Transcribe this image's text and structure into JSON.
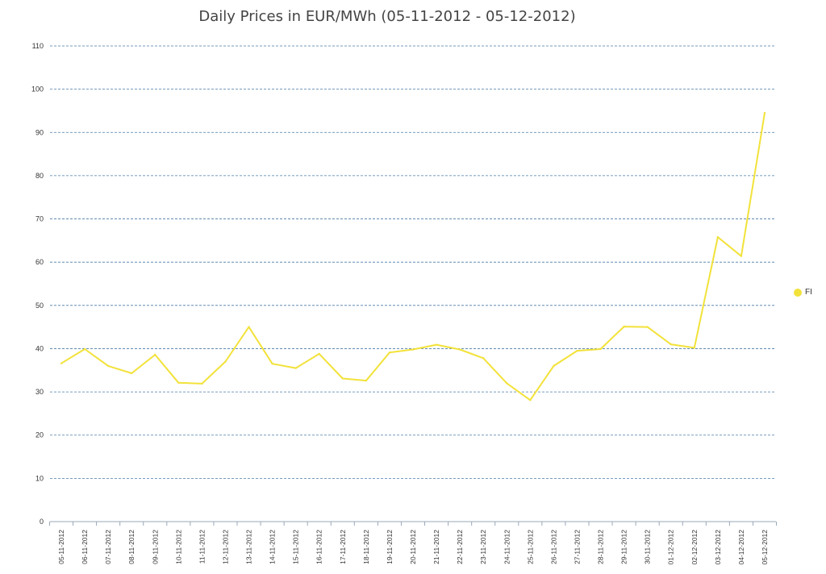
{
  "chart_data": {
    "type": "line",
    "title": "Daily Prices in EUR/MWh (05-11-2012 - 05-12-2012)",
    "xlabel": "",
    "ylabel": "",
    "ylim": [
      0,
      110
    ],
    "yticks": [
      0,
      10,
      20,
      30,
      40,
      50,
      60,
      70,
      80,
      90,
      100,
      110
    ],
    "grid": true,
    "legend": "right",
    "categories": [
      "05-11-2012",
      "06-11-2012",
      "07-11-2012",
      "08-11-2012",
      "09-11-2012",
      "10-11-2012",
      "11-11-2012",
      "12-11-2012",
      "13-11-2012",
      "14-11-2012",
      "15-11-2012",
      "16-11-2012",
      "17-11-2012",
      "18-11-2012",
      "19-11-2012",
      "20-11-2012",
      "21-11-2012",
      "22-11-2012",
      "23-11-2012",
      "24-11-2012",
      "25-11-2012",
      "26-11-2012",
      "27-11-2012",
      "28-11-2012",
      "29-11-2012",
      "30-11-2012",
      "01-12-2012",
      "02-12-2012",
      "03-12-2012",
      "04-12-2012",
      "05-12-2012"
    ],
    "series": [
      {
        "name": "FI",
        "color": "#f2e23a",
        "values": [
          36.6,
          39.9,
          36.0,
          34.3,
          38.6,
          32.1,
          31.9,
          37.0,
          45.0,
          36.5,
          35.5,
          38.8,
          33.1,
          32.6,
          39.1,
          39.8,
          40.9,
          39.8,
          37.8,
          32.0,
          28.1,
          36.0,
          39.5,
          39.9,
          45.1,
          45.0,
          41.0,
          40.2,
          65.8,
          61.4,
          94.5
        ]
      }
    ],
    "grid_color": "#4a7aa8"
  }
}
